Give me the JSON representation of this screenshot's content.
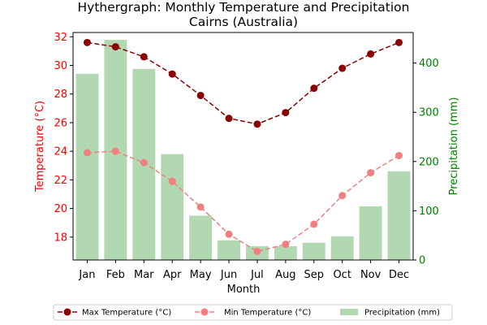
{
  "chart_data": {
    "type": "bar+line",
    "title_line1": "Hythergraph: Monthly Temperature and Precipitation",
    "title_line2": "Cairns (Australia)",
    "xlabel": "Month",
    "ylabel_left": "Temperature (°C)",
    "ylabel_right": "Precipitation (mm)",
    "categories": [
      "Jan",
      "Feb",
      "Mar",
      "Apr",
      "May",
      "Jun",
      "Jul",
      "Aug",
      "Sep",
      "Oct",
      "Nov",
      "Dec"
    ],
    "ylim_left": [
      16.4,
      32.3
    ],
    "ylim_right": [
      0,
      462
    ],
    "yticks_left": [
      "18",
      "20",
      "22",
      "24",
      "26",
      "28",
      "30",
      "32"
    ],
    "yticks_right": [
      "0",
      "100",
      "200",
      "300",
      "400"
    ],
    "series": [
      {
        "name": "Max Temperature (°C)",
        "axis": "left",
        "kind": "line",
        "color": "#8b0000",
        "values": [
          31.6,
          31.3,
          30.6,
          29.4,
          27.9,
          26.3,
          25.9,
          26.7,
          28.4,
          29.8,
          30.8,
          31.6
        ]
      },
      {
        "name": "Min Temperature (°C)",
        "axis": "left",
        "kind": "line",
        "color": "#f08080",
        "values": [
          23.9,
          24.0,
          23.2,
          21.9,
          20.1,
          18.2,
          17.0,
          17.5,
          18.9,
          20.9,
          22.5,
          23.7
        ]
      },
      {
        "name": "Precipitation (mm)",
        "axis": "right",
        "kind": "bar",
        "color": "#b2d8b2",
        "values": [
          378,
          447,
          388,
          215,
          90,
          40,
          28,
          28,
          35,
          48,
          109,
          180
        ]
      }
    ],
    "colors": {
      "left_axis": "#ff0000",
      "right_axis": "#008000"
    },
    "legend": {
      "placement": "bottom-center",
      "ncols": 3
    },
    "grid": false
  }
}
